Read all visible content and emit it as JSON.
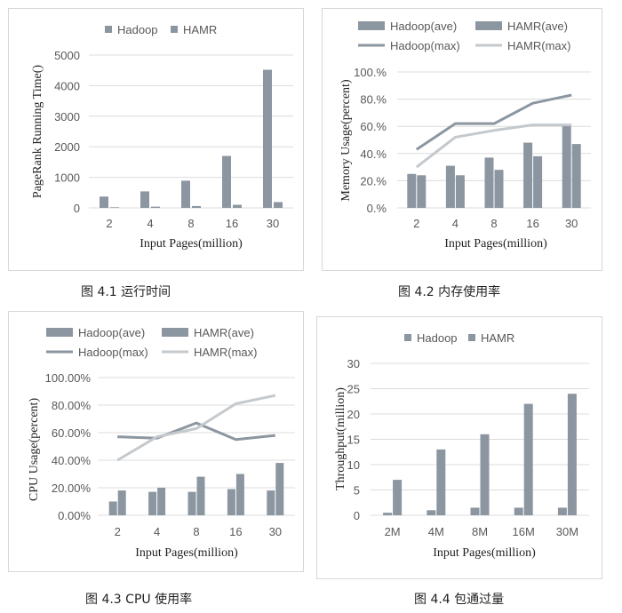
{
  "colors": {
    "hadoop_bar": "#8c96a0",
    "hamr_bar": "#8c96a0",
    "hadoop_line": "#8c96a0",
    "hamr_line": "#c4c9ce",
    "grid": "#dcdcdc",
    "text": "#595959"
  },
  "captions": {
    "fig1": "图 4.1  运行时间",
    "fig2": "图 4.2  内存使用率",
    "fig3": "图 4.3 CPU 使用率",
    "fig4": "图 4.4  包通过量"
  },
  "chart_data": [
    {
      "id": "fig1",
      "type": "bar",
      "title": "",
      "xlabel": "Input Pages(million)",
      "ylabel": "PageRank Running Time()",
      "categories": [
        "2",
        "4",
        "8",
        "16",
        "30"
      ],
      "ylim": [
        0,
        5000
      ],
      "yticks": [
        0,
        1000,
        2000,
        3000,
        4000,
        5000
      ],
      "ytick_labels": [
        "0",
        "1000",
        "2000",
        "3000",
        "4000",
        "5000"
      ],
      "legend_position": "top",
      "grid": true,
      "series": [
        {
          "name": "Hadoop",
          "values": [
            370,
            540,
            890,
            1700,
            4520
          ]
        },
        {
          "name": "HAMR",
          "values": [
            20,
            40,
            60,
            100,
            190
          ]
        }
      ]
    },
    {
      "id": "fig2",
      "type": "bar",
      "title": "",
      "xlabel": "Input Pages(million)",
      "ylabel": "Memory Usage(percent)",
      "categories": [
        "2",
        "4",
        "8",
        "16",
        "30"
      ],
      "ylim": [
        0,
        100
      ],
      "yticks": [
        0,
        20,
        40,
        60,
        80,
        100
      ],
      "ytick_labels": [
        "0.%",
        "20.%",
        "40.%",
        "60.%",
        "80.%",
        "100.%"
      ],
      "legend_position": "top",
      "grid": true,
      "series": [
        {
          "name": "Hadoop(ave)",
          "kind": "bar",
          "values": [
            25,
            31,
            37,
            48,
            61
          ]
        },
        {
          "name": "HAMR(ave)",
          "kind": "bar",
          "values": [
            24,
            24,
            28,
            38,
            47
          ]
        },
        {
          "name": "Hadoop(max)",
          "kind": "line",
          "values": [
            43,
            62,
            62,
            77,
            83
          ]
        },
        {
          "name": "HAMR(max)",
          "kind": "line",
          "values": [
            30,
            52,
            57,
            61,
            61
          ]
        }
      ]
    },
    {
      "id": "fig3",
      "type": "bar",
      "title": "",
      "xlabel": "Input Pages(million)",
      "ylabel": "CPU Usage(percent)",
      "categories": [
        "2",
        "4",
        "8",
        "16",
        "30"
      ],
      "ylim": [
        0,
        100
      ],
      "yticks": [
        0,
        20,
        40,
        60,
        80,
        100
      ],
      "ytick_labels": [
        "0.00%",
        "20.00%",
        "40.00%",
        "60.00%",
        "80.00%",
        "100.00%"
      ],
      "legend_position": "top",
      "grid": true,
      "series": [
        {
          "name": "Hadoop(ave)",
          "kind": "bar",
          "values": [
            10,
            17,
            17,
            19,
            18
          ]
        },
        {
          "name": "HAMR(ave)",
          "kind": "bar",
          "values": [
            18,
            20,
            28,
            30,
            38
          ]
        },
        {
          "name": "Hadoop(max)",
          "kind": "line",
          "values": [
            57,
            56,
            67,
            55,
            58
          ]
        },
        {
          "name": "HAMR(max)",
          "kind": "line",
          "values": [
            40,
            57,
            63,
            81,
            87
          ]
        }
      ]
    },
    {
      "id": "fig4",
      "type": "bar",
      "title": "",
      "xlabel": "Input Pages(million)",
      "ylabel": "Throughput(million)",
      "categories": [
        "2M",
        "4M",
        "8M",
        "16M",
        "30M"
      ],
      "ylim": [
        0,
        30
      ],
      "yticks": [
        0,
        5,
        10,
        15,
        20,
        25,
        30
      ],
      "ytick_labels": [
        "0",
        "5",
        "10",
        "15",
        "20",
        "25",
        "30"
      ],
      "legend_position": "top",
      "grid": true,
      "series": [
        {
          "name": "Hadoop",
          "values": [
            0.5,
            1,
            1.5,
            1.5,
            1.5
          ]
        },
        {
          "name": "HAMR",
          "values": [
            7,
            13,
            16,
            22,
            24
          ]
        }
      ]
    }
  ]
}
